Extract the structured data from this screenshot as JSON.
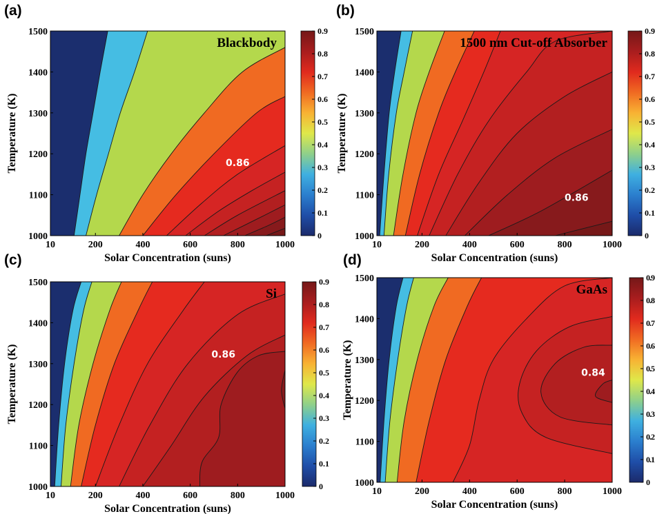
{
  "colors": {
    "levels": [
      "#1b2e6e",
      "#45bde3",
      "#b4d84c",
      "#f06a22",
      "#e52a1f",
      "#d62524",
      "#c52222",
      "#b21f20",
      "#9e1c1f",
      "#871a1c",
      "#761818"
    ],
    "line": "#1a1a1a"
  },
  "colorbar": {
    "ticks": [
      "0",
      "0.1",
      "0.2",
      "0.3",
      "0.4",
      "0.5",
      "0.6",
      "0.7",
      "0.8",
      "0.9"
    ],
    "stops": [
      "#1b2a6b",
      "#1f4ea8",
      "#2b7fce",
      "#3fb0e0",
      "#8fd08a",
      "#dfe84a",
      "#f8b233",
      "#f06a22",
      "#e02a1e",
      "#a81d1e",
      "#751818"
    ]
  },
  "chart_data": [
    {
      "type": "contour",
      "panel": "(a)",
      "title": "Blackbody",
      "xlabel": "Solar Concentration (suns)",
      "ylabel": "Temperature (K)",
      "xlim": [
        10,
        1000
      ],
      "ylim": [
        1000,
        1500
      ],
      "x_ticks": [
        "10",
        "200",
        "400",
        "600",
        "800",
        "1000"
      ],
      "y_ticks": [
        "1000",
        "1100",
        "1200",
        "1300",
        "1400",
        "1500"
      ],
      "colorbar_range": [
        0,
        0.9
      ],
      "annotation": {
        "text": "0.86",
        "x": 800,
        "y": 1170
      },
      "levels": [
        0.2,
        0.4,
        0.6,
        0.7,
        0.76,
        0.8,
        0.82,
        0.84,
        0.86,
        0.88
      ],
      "contours": [
        {
          "level": 0.2,
          "points": [
            [
              110,
              1000
            ],
            [
              135,
              1100
            ],
            [
              160,
              1200
            ],
            [
              190,
              1300
            ],
            [
              220,
              1400
            ],
            [
              252,
              1500
            ]
          ]
        },
        {
          "level": 0.4,
          "points": [
            [
              160,
              1000
            ],
            [
              205,
              1100
            ],
            [
              255,
              1200
            ],
            [
              305,
              1300
            ],
            [
              365,
              1400
            ],
            [
              420,
              1500
            ]
          ]
        },
        {
          "level": 0.6,
          "points": [
            [
              300,
              1000
            ],
            [
              400,
              1100
            ],
            [
              520,
              1200
            ],
            [
              660,
              1300
            ],
            [
              820,
              1400
            ],
            [
              1000,
              1460
            ]
          ]
        },
        {
          "level": 0.7,
          "points": [
            [
              400,
              1000
            ],
            [
              540,
              1100
            ],
            [
              700,
              1200
            ],
            [
              880,
              1300
            ],
            [
              1000,
              1340
            ]
          ]
        },
        {
          "level": 0.76,
          "points": [
            [
              500,
              1000
            ],
            [
              650,
              1080
            ],
            [
              800,
              1150
            ],
            [
              1000,
              1220
            ]
          ]
        },
        {
          "level": 0.8,
          "points": [
            [
              580,
              1000
            ],
            [
              720,
              1060
            ],
            [
              860,
              1110
            ],
            [
              1000,
              1155
            ]
          ]
        },
        {
          "level": 0.82,
          "points": [
            [
              660,
              1000
            ],
            [
              800,
              1050
            ],
            [
              1000,
              1110
            ]
          ]
        },
        {
          "level": 0.84,
          "points": [
            [
              740,
              1000
            ],
            [
              880,
              1040
            ],
            [
              1000,
              1075
            ]
          ]
        },
        {
          "level": 0.86,
          "points": [
            [
              830,
              1000
            ],
            [
              930,
              1025
            ],
            [
              1000,
              1045
            ]
          ]
        },
        {
          "level": 0.88,
          "points": [
            [
              920,
              1000
            ],
            [
              1000,
              1018
            ]
          ]
        }
      ]
    },
    {
      "type": "contour",
      "panel": "(b)",
      "title": "1500 nm Cut-off Absorber",
      "xlabel": "Solar Concentration (suns)",
      "ylabel": "Temperature (K)",
      "xlim": [
        10,
        1000
      ],
      "ylim": [
        1000,
        1500
      ],
      "x_ticks": [
        "10",
        "200",
        "400",
        "600",
        "800",
        "1000"
      ],
      "y_ticks": [
        "1000",
        "1100",
        "1200",
        "1300",
        "1400",
        "1500"
      ],
      "colorbar_range": [
        0,
        0.9
      ],
      "annotation": {
        "text": "0.86",
        "x": 850,
        "y": 1085
      },
      "levels": [
        0.2,
        0.4,
        0.6,
        0.7,
        0.76,
        0.8,
        0.82,
        0.84,
        0.86,
        0.88
      ],
      "contours": [
        {
          "level": 0.2,
          "points": [
            [
              22,
              1000
            ],
            [
              40,
              1150
            ],
            [
              62,
              1300
            ],
            [
              85,
              1400
            ],
            [
              112,
              1500
            ]
          ]
        },
        {
          "level": 0.4,
          "points": [
            [
              40,
              1000
            ],
            [
              60,
              1150
            ],
            [
              92,
              1300
            ],
            [
              125,
              1400
            ],
            [
              160,
              1500
            ]
          ]
        },
        {
          "level": 0.6,
          "points": [
            [
              80,
              1000
            ],
            [
              120,
              1150
            ],
            [
              175,
              1300
            ],
            [
              230,
              1400
            ],
            [
              295,
              1500
            ]
          ]
        },
        {
          "level": 0.7,
          "points": [
            [
              130,
              1000
            ],
            [
              190,
              1150
            ],
            [
              270,
              1300
            ],
            [
              340,
              1400
            ],
            [
              420,
              1500
            ]
          ]
        },
        {
          "level": 0.76,
          "points": [
            [
              180,
              1000
            ],
            [
              270,
              1150
            ],
            [
              370,
              1280
            ],
            [
              460,
              1400
            ],
            [
              530,
              1500
            ]
          ]
        },
        {
          "level": 0.8,
          "points": [
            [
              230,
              1000
            ],
            [
              350,
              1150
            ],
            [
              480,
              1280
            ],
            [
              640,
              1400
            ],
            [
              760,
              1475
            ],
            [
              1000,
              1500
            ]
          ]
        },
        {
          "level": 0.82,
          "points": [
            [
              300,
              1000
            ],
            [
              440,
              1130
            ],
            [
              600,
              1250
            ],
            [
              800,
              1340
            ],
            [
              1000,
              1400
            ]
          ]
        },
        {
          "level": 0.84,
          "points": [
            [
              380,
              1000
            ],
            [
              560,
              1100
            ],
            [
              760,
              1190
            ],
            [
              1000,
              1260
            ]
          ]
        },
        {
          "level": 0.86,
          "points": [
            [
              480,
              1000
            ],
            [
              700,
              1060
            ],
            [
              1000,
              1160
            ]
          ]
        },
        {
          "level": 0.88,
          "points": [
            [
              760,
              1000
            ],
            [
              1000,
              1035
            ]
          ]
        }
      ]
    },
    {
      "type": "contour",
      "panel": "(c)",
      "title": "Si",
      "xlabel": "Solar Concentration (suns)",
      "ylabel": "Temperature (K)",
      "xlim": [
        10,
        1000
      ],
      "ylim": [
        1000,
        1500
      ],
      "x_ticks": [
        "10",
        "200",
        "400",
        "600",
        "800",
        "1000"
      ],
      "y_ticks": [
        "1000",
        "1100",
        "1200",
        "1300",
        "1400",
        "1500"
      ],
      "colorbar_range": [
        0,
        0.9
      ],
      "annotation": {
        "text": "0.86",
        "x": 740,
        "y": 1315
      },
      "levels": [
        0.2,
        0.4,
        0.6,
        0.7,
        0.76,
        0.8,
        0.82,
        0.84,
        0.86
      ],
      "contours": [
        {
          "level": 0.2,
          "points": [
            [
              28,
              1000
            ],
            [
              45,
              1150
            ],
            [
              70,
              1300
            ],
            [
              105,
              1430
            ],
            [
              140,
              1500
            ]
          ]
        },
        {
          "level": 0.4,
          "points": [
            [
              55,
              1000
            ],
            [
              75,
              1150
            ],
            [
              110,
              1300
            ],
            [
              150,
              1430
            ],
            [
              185,
              1500
            ]
          ]
        },
        {
          "level": 0.6,
          "points": [
            [
              95,
              1000
            ],
            [
              130,
              1150
            ],
            [
              190,
              1300
            ],
            [
              260,
              1430
            ],
            [
              310,
              1500
            ]
          ]
        },
        {
          "level": 0.7,
          "points": [
            [
              140,
              1000
            ],
            [
              200,
              1150
            ],
            [
              280,
              1300
            ],
            [
              380,
              1430
            ],
            [
              440,
              1500
            ]
          ]
        },
        {
          "level": 0.76,
          "points": [
            [
              200,
              1000
            ],
            [
              300,
              1150
            ],
            [
              420,
              1300
            ],
            [
              570,
              1430
            ],
            [
              660,
              1500
            ]
          ]
        },
        {
          "level": 0.8,
          "points": [
            [
              300,
              1000
            ],
            [
              430,
              1150
            ],
            [
              590,
              1300
            ],
            [
              800,
              1420
            ],
            [
              1000,
              1470
            ]
          ]
        },
        {
          "level": 0.82,
          "points": [
            [
              400,
              1000
            ],
            [
              520,
              1100
            ],
            [
              660,
              1220
            ],
            [
              840,
              1320
            ],
            [
              1000,
              1370
            ]
          ]
        },
        {
          "level": 0.84,
          "points": [
            [
              640,
              1000
            ],
            [
              650,
              1060
            ],
            [
              720,
              1120
            ],
            [
              730,
              1200
            ],
            [
              800,
              1280
            ],
            [
              890,
              1320
            ],
            [
              1000,
              1330
            ]
          ]
        },
        {
          "level": 0.86,
          "points": [
            [
              1000,
              1190
            ],
            [
              985,
              1235
            ],
            [
              1000,
              1285
            ]
          ]
        }
      ]
    },
    {
      "type": "contour",
      "panel": "(d)",
      "title": "GaAs",
      "xlabel": "Solar Concentration (suns)",
      "ylabel": "Temperature (K)",
      "xlim": [
        10,
        1000
      ],
      "ylim": [
        1000,
        1500
      ],
      "x_ticks": [
        "10",
        "200",
        "400",
        "600",
        "800",
        "1000"
      ],
      "y_ticks": [
        "1000",
        "1100",
        "1200",
        "1300",
        "1400",
        "1500"
      ],
      "colorbar_range": [
        0,
        0.9
      ],
      "annotation": {
        "text": "0.84",
        "x": 920,
        "y": 1260
      },
      "levels": [
        0.2,
        0.4,
        0.6,
        0.7,
        0.76,
        0.8,
        0.82,
        0.84
      ],
      "contours": [
        {
          "level": 0.2,
          "points": [
            [
              24,
              1000
            ],
            [
              40,
              1150
            ],
            [
              62,
              1300
            ],
            [
              92,
              1430
            ],
            [
              120,
              1500
            ]
          ]
        },
        {
          "level": 0.4,
          "points": [
            [
              45,
              1000
            ],
            [
              65,
              1150
            ],
            [
              98,
              1300
            ],
            [
              135,
              1430
            ],
            [
              165,
              1500
            ]
          ]
        },
        {
          "level": 0.6,
          "points": [
            [
              95,
              1000
            ],
            [
              125,
              1150
            ],
            [
              180,
              1300
            ],
            [
              250,
              1430
            ],
            [
              310,
              1500
            ]
          ]
        },
        {
          "level": 0.7,
          "points": [
            [
              175,
              1000
            ],
            [
              230,
              1150
            ],
            [
              300,
              1300
            ],
            [
              390,
              1430
            ],
            [
              450,
              1500
            ]
          ]
        },
        {
          "level": 0.76,
          "points": [
            [
              330,
              1000
            ],
            [
              400,
              1090
            ],
            [
              440,
              1200
            ],
            [
              500,
              1300
            ],
            [
              640,
              1400
            ],
            [
              800,
              1480
            ],
            [
              1000,
              1500
            ]
          ]
        },
        {
          "level": 0.8,
          "points": [
            [
              1000,
              1070
            ],
            [
              720,
              1110
            ],
            [
              620,
              1170
            ],
            [
              610,
              1240
            ],
            [
              680,
              1320
            ],
            [
              820,
              1380
            ],
            [
              1000,
              1405
            ]
          ]
        },
        {
          "level": 0.82,
          "points": [
            [
              1000,
              1140
            ],
            [
              780,
              1160
            ],
            [
              700,
              1220
            ],
            [
              760,
              1290
            ],
            [
              880,
              1330
            ],
            [
              1000,
              1335
            ]
          ]
        },
        {
          "level": 0.84,
          "points": [
            [
              1000,
              1195
            ],
            [
              930,
              1210
            ],
            [
              960,
              1240
            ],
            [
              1000,
              1250
            ]
          ]
        }
      ]
    }
  ]
}
